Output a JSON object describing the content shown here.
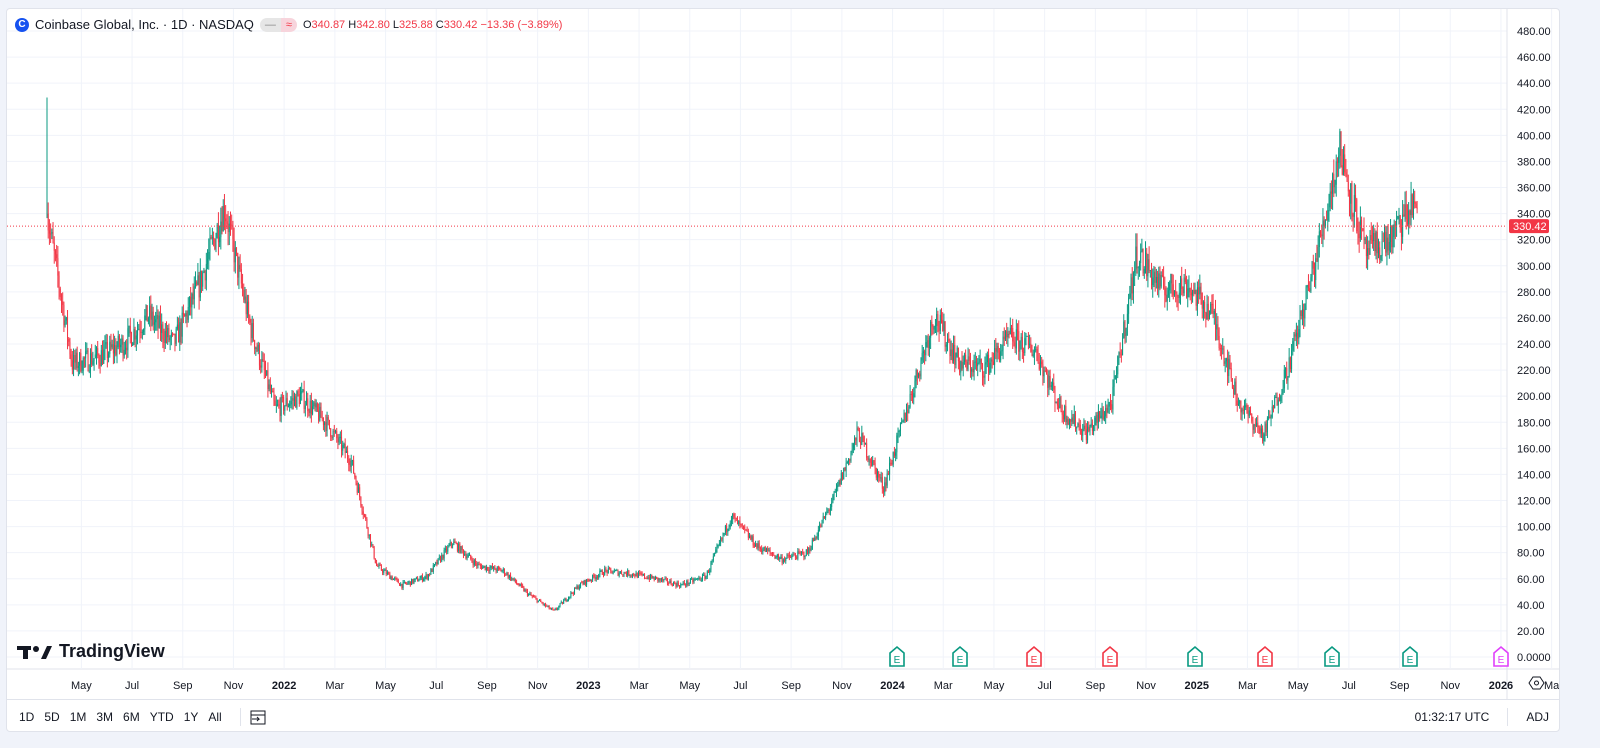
{
  "header": {
    "symbol": "Coinbase Global, Inc. · 1D · NASDAQ",
    "logo_letter": "C",
    "open_label": "O",
    "open": "340.87",
    "high_label": "H",
    "high": "342.80",
    "low_label": "L",
    "low": "325.88",
    "close_label": "C",
    "close": "330.42",
    "change": "−13.36 (−3.89%)",
    "pill_left": "—",
    "pill_right": "≈"
  },
  "branding": "TradingView",
  "toolbar": {
    "timeframes": [
      "1D",
      "5D",
      "1M",
      "3M",
      "6M",
      "YTD",
      "1Y",
      "All"
    ],
    "time": "01:32:17 UTC",
    "adj": "ADJ"
  },
  "colors": {
    "up": "#089981",
    "down": "#f23645",
    "earnings_up": "#089981",
    "earnings_down": "#f23645",
    "earnings_future": "#e040fb"
  },
  "chart_data": {
    "type": "candlestick",
    "ylim": [
      0,
      480
    ],
    "y_ticks": [
      "480.00",
      "460.00",
      "440.00",
      "420.00",
      "400.00",
      "380.00",
      "360.00",
      "340.00",
      "320.00",
      "300.00",
      "280.00",
      "260.00",
      "240.00",
      "220.00",
      "200.00",
      "180.00",
      "160.00",
      "140.00",
      "120.00",
      "100.00",
      "80.00",
      "60.00",
      "40.00",
      "20.00",
      "0.0000"
    ],
    "x_ticks": [
      "May",
      "Jul",
      "Sep",
      "Nov",
      "2022",
      "Mar",
      "May",
      "Jul",
      "Sep",
      "Nov",
      "2023",
      "Mar",
      "May",
      "Jul",
      "Sep",
      "Nov",
      "2024",
      "Mar",
      "May",
      "Jul",
      "Sep",
      "Nov",
      "2025",
      "Mar",
      "May",
      "Jul",
      "Sep",
      "Nov",
      "2026",
      "Ma"
    ],
    "last_price": "330.42",
    "approx_monthly_close": [
      [
        "2021-04",
        340
      ],
      [
        "2021-05",
        225
      ],
      [
        "2021-06",
        230
      ],
      [
        "2021-07",
        240
      ],
      [
        "2021-08",
        262
      ],
      [
        "2021-09",
        240
      ],
      [
        "2021-10",
        285
      ],
      [
        "2021-11",
        345
      ],
      [
        "2021-12",
        255
      ],
      [
        "2022-01",
        190
      ],
      [
        "2022-02",
        200
      ],
      [
        "2022-03",
        180
      ],
      [
        "2022-04",
        150
      ],
      [
        "2022-05",
        70
      ],
      [
        "2022-06",
        55
      ],
      [
        "2022-07",
        62
      ],
      [
        "2022-08",
        88
      ],
      [
        "2022-09",
        70
      ],
      [
        "2022-10",
        66
      ],
      [
        "2022-11",
        48
      ],
      [
        "2022-12",
        35
      ],
      [
        "2023-01",
        55
      ],
      [
        "2023-02",
        66
      ],
      [
        "2023-03",
        64
      ],
      [
        "2023-04",
        60
      ],
      [
        "2023-05",
        55
      ],
      [
        "2023-06",
        62
      ],
      [
        "2023-07",
        108
      ],
      [
        "2023-08",
        85
      ],
      [
        "2023-09",
        75
      ],
      [
        "2023-10",
        80
      ],
      [
        "2023-11",
        120
      ],
      [
        "2023-12",
        172
      ],
      [
        "2024-01",
        130
      ],
      [
        "2024-02",
        195
      ],
      [
        "2024-03",
        262
      ],
      [
        "2024-04",
        225
      ],
      [
        "2024-05",
        222
      ],
      [
        "2024-06",
        245
      ],
      [
        "2024-07",
        235
      ],
      [
        "2024-08",
        190
      ],
      [
        "2024-09",
        172
      ],
      [
        "2024-10",
        195
      ],
      [
        "2024-11",
        310
      ],
      [
        "2024-12",
        282
      ],
      [
        "2025-01",
        285
      ],
      [
        "2025-02",
        262
      ],
      [
        "2025-03",
        195
      ],
      [
        "2025-04",
        170
      ],
      [
        "2025-05",
        225
      ],
      [
        "2025-06",
        300
      ],
      [
        "2025-07",
        390
      ],
      [
        "2025-08",
        310
      ],
      [
        "2025-09",
        320
      ],
      [
        "2025-10",
        350
      ],
      [
        "2025-11",
        330
      ]
    ],
    "earnings": [
      {
        "label": "E",
        "type": "up"
      },
      {
        "label": "E",
        "type": "up"
      },
      {
        "label": "E",
        "type": "down"
      },
      {
        "label": "E",
        "type": "down"
      },
      {
        "label": "E",
        "type": "up"
      },
      {
        "label": "E",
        "type": "down"
      },
      {
        "label": "E",
        "type": "up"
      },
      {
        "label": "E",
        "type": "up"
      },
      {
        "label": "E",
        "type": "future"
      }
    ]
  }
}
